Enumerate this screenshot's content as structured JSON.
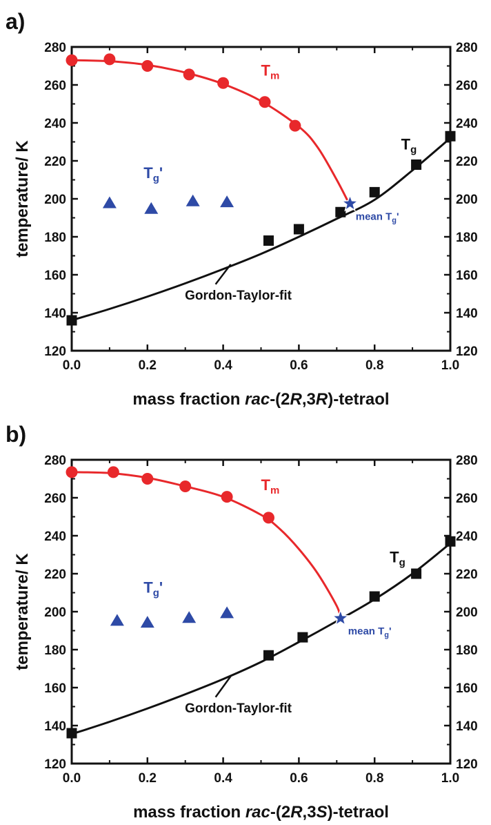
{
  "chart_data": [
    {
      "type": "scatter",
      "panel_label": "a)",
      "xlabel_prefix": "mass fraction ",
      "xlabel_italic_a": "rac",
      "xlabel_mid": "-(2",
      "xlabel_italic_b": "R",
      "xlabel_mid2": ",3",
      "xlabel_italic_c": "R",
      "xlabel_suffix": ")-tetraol",
      "ylabel": "temperature/ K",
      "xlim": [
        0.0,
        1.0
      ],
      "ylim": [
        120,
        280
      ],
      "xticks": [
        0.0,
        0.2,
        0.4,
        0.6,
        0.8,
        1.0
      ],
      "xtick_labels": [
        "0.0",
        "0.2",
        "0.4",
        "0.6",
        "0.8",
        "1.0"
      ],
      "yticks": [
        120,
        140,
        160,
        180,
        200,
        220,
        240,
        260,
        280
      ],
      "ytick_labels": [
        "120",
        "140",
        "160",
        "180",
        "200",
        "220",
        "240",
        "260",
        "280"
      ],
      "series": [
        {
          "key": "Tm",
          "color": "#e8282b",
          "marker": "circle",
          "x": [
            0.0,
            0.1,
            0.2,
            0.31,
            0.4,
            0.51,
            0.59
          ],
          "y": [
            273,
            273.5,
            270,
            265.5,
            261,
            251,
            238.5
          ],
          "curve_x": [
            0.0,
            0.1,
            0.2,
            0.3,
            0.4,
            0.5,
            0.6,
            0.65,
            0.7,
            0.735
          ],
          "curve_y": [
            273,
            272.5,
            270.5,
            266.5,
            260.5,
            251.5,
            238,
            227,
            210,
            196.5
          ]
        },
        {
          "key": "Tg",
          "color": "#111111",
          "marker": "square",
          "x": [
            0.0,
            0.52,
            0.6,
            0.71,
            0.8,
            0.91,
            1.0
          ],
          "y": [
            136,
            178,
            184,
            193,
            203.5,
            218,
            233
          ],
          "curve_x": [
            0.0,
            0.1,
            0.2,
            0.3,
            0.4,
            0.5,
            0.6,
            0.7,
            0.8,
            0.9,
            1.0
          ],
          "curve_y": [
            136,
            142,
            148.5,
            155.5,
            163,
            171,
            180,
            189.5,
            199.5,
            215,
            232
          ]
        },
        {
          "key": "Tg_prime",
          "color": "#2e4aa6",
          "marker": "triangle",
          "x": [
            0.1,
            0.21,
            0.32,
            0.41
          ],
          "y": [
            198,
            195,
            199,
            198.5
          ]
        }
      ],
      "mean_star": {
        "x": 0.735,
        "y": 197.5,
        "color": "#2e4aa6"
      },
      "labels": {
        "tm_main": "T",
        "tm_sub": "m",
        "tg_main": "T",
        "tg_sub": "g",
        "tgp_main": "T",
        "tgp_sub": "g",
        "tgp_prime": "'",
        "mean_prefix": "mean T",
        "mean_sub": "g",
        "mean_prime": "'",
        "fit": "Gordon-Taylor-fit"
      },
      "label_anchors": {
        "tm": {
          "x": 0.5,
          "y": 265
        },
        "tg": {
          "x": 0.87,
          "y": 226
        },
        "tgp": {
          "x": 0.19,
          "y": 211
        },
        "mean": {
          "x": 0.75,
          "y": 189
        },
        "fit": {
          "x": 0.44,
          "y": 147
        },
        "fit_leader": [
          0.42,
          165.5,
          0.38,
          155
        ]
      }
    },
    {
      "type": "scatter",
      "panel_label": "b)",
      "xlabel_prefix": "mass fraction ",
      "xlabel_italic_a": "rac",
      "xlabel_mid": "-(2",
      "xlabel_italic_b": "R",
      "xlabel_mid2": ",3",
      "xlabel_italic_c": "S",
      "xlabel_suffix": ")-tetraol",
      "ylabel": "temperature/ K",
      "xlim": [
        0.0,
        1.0
      ],
      "ylim": [
        120,
        280
      ],
      "xticks": [
        0.0,
        0.2,
        0.4,
        0.6,
        0.8,
        1.0
      ],
      "xtick_labels": [
        "0.0",
        "0.2",
        "0.4",
        "0.6",
        "0.8",
        "1.0"
      ],
      "yticks": [
        120,
        140,
        160,
        180,
        200,
        220,
        240,
        260,
        280
      ],
      "ytick_labels": [
        "120",
        "140",
        "160",
        "180",
        "200",
        "220",
        "240",
        "260",
        "280"
      ],
      "series": [
        {
          "key": "Tm",
          "color": "#e8282b",
          "marker": "circle",
          "x": [
            0.0,
            0.11,
            0.2,
            0.3,
            0.41,
            0.52
          ],
          "y": [
            273.5,
            273.5,
            270,
            266,
            260.5,
            249.5
          ],
          "curve_x": [
            0.0,
            0.1,
            0.2,
            0.3,
            0.4,
            0.5,
            0.55,
            0.6,
            0.65,
            0.7,
            0.71
          ],
          "curve_y": [
            273.5,
            273,
            270.5,
            266,
            260.5,
            251,
            243.5,
            233,
            220,
            203,
            196.5
          ]
        },
        {
          "key": "Tg",
          "color": "#111111",
          "marker": "square",
          "x": [
            0.0,
            0.52,
            0.61,
            0.8,
            0.91,
            1.0
          ],
          "y": [
            136,
            177,
            186.5,
            208,
            220,
            237
          ],
          "curve_x": [
            0.0,
            0.1,
            0.2,
            0.3,
            0.4,
            0.5,
            0.6,
            0.7,
            0.8,
            0.9,
            1.0
          ],
          "curve_y": [
            135.5,
            142,
            149,
            156.5,
            164.5,
            173.5,
            184,
            195,
            206.5,
            220,
            236
          ]
        },
        {
          "key": "Tg_prime",
          "color": "#2e4aa6",
          "marker": "triangle",
          "x": [
            0.12,
            0.2,
            0.31,
            0.41
          ],
          "y": [
            195.5,
            194.5,
            197,
            199.5
          ]
        }
      ],
      "mean_star": {
        "x": 0.71,
        "y": 196.5,
        "color": "#2e4aa6"
      },
      "labels": {
        "tm_main": "T",
        "tm_sub": "m",
        "tg_main": "T",
        "tg_sub": "g",
        "tgp_main": "T",
        "tgp_sub": "g",
        "tgp_prime": "'",
        "mean_prefix": "mean T",
        "mean_sub": "g",
        "mean_prime": "'",
        "fit": "Gordon-Taylor-fit"
      },
      "label_anchors": {
        "tm": {
          "x": 0.5,
          "y": 264
        },
        "tg": {
          "x": 0.84,
          "y": 226
        },
        "tgp": {
          "x": 0.19,
          "y": 210
        },
        "mean": {
          "x": 0.73,
          "y": 188
        },
        "fit": {
          "x": 0.44,
          "y": 147
        },
        "fit_leader": [
          0.42,
          166,
          0.38,
          155
        ]
      }
    }
  ]
}
